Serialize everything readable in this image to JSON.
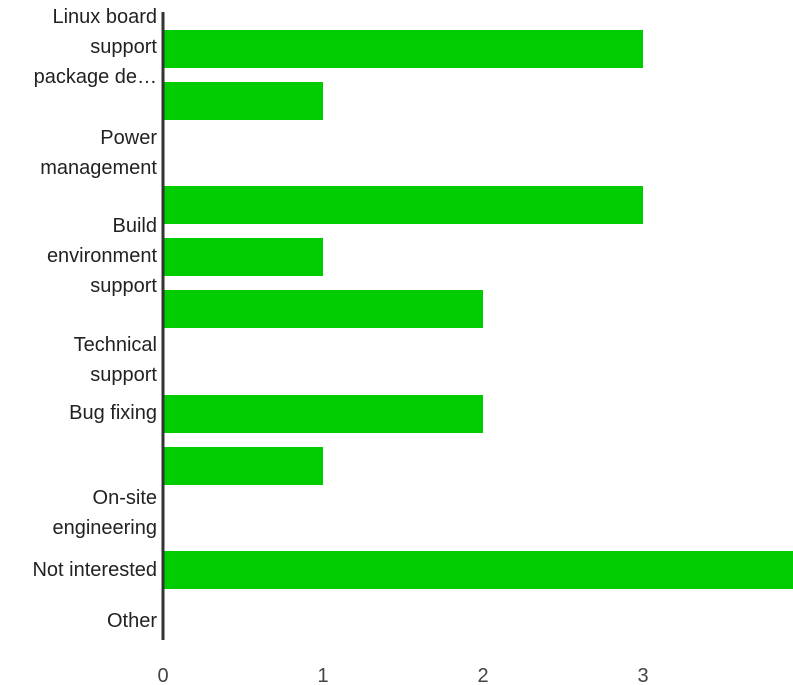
{
  "chart_data": {
    "type": "bar",
    "orientation": "horizontal",
    "category_labels": [
      "Linux board\nsupport\npackage de…",
      "Power\nmanagement",
      "Build\nenvironment\nsupport",
      "Technical\nsupport",
      "Bug fixing",
      "On-site\nengineering",
      "Not interested",
      "Other"
    ],
    "bars": [
      {
        "value": 3
      },
      {
        "value": 1
      },
      {
        "value": 3
      },
      {
        "value": 1
      },
      {
        "value": 2
      },
      {
        "value": 2
      },
      {
        "value": 1
      },
      {
        "value": 4
      }
    ],
    "x_ticks": [
      "0",
      "1",
      "2",
      "3"
    ],
    "xlim": [
      0,
      3.94
    ],
    "bar_color": "#00cc00",
    "grid": false,
    "title": "",
    "xlabel": "",
    "ylabel": ""
  }
}
